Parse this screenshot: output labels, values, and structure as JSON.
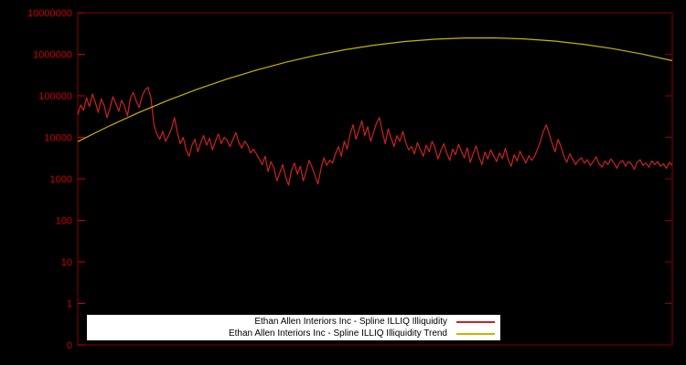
{
  "colors": {
    "background": "#000000",
    "border": "#8b0000",
    "tick_label": "#cc0000",
    "legend_background": "#ffffff",
    "legend_text": "#000000"
  },
  "chart_data": {
    "type": "line",
    "title": "",
    "xlabel": "",
    "ylabel": "",
    "x_axis": {
      "tick_labels_visible": false
    },
    "y_axis": {
      "scale": "log",
      "tick_labels": [
        "10000000",
        "1000000",
        "100000",
        "10000",
        "1000",
        "100",
        "10",
        "1",
        "0"
      ],
      "tick_values": [
        10000000,
        1000000,
        100000,
        10000,
        1000,
        100,
        10,
        1,
        0.1
      ],
      "range_log10": [
        -1,
        7
      ]
    },
    "legend": {
      "position": "bottom-center",
      "background": "#ffffff"
    },
    "series": [
      {
        "name": "Ethan Allen Interiors Inc - Spline ILLIQ Illiquidity",
        "color": "#cc2222",
        "values": [
          35000,
          60000,
          45000,
          90000,
          55000,
          110000,
          70000,
          40000,
          85000,
          60000,
          30000,
          50000,
          95000,
          65000,
          42000,
          78000,
          55000,
          33000,
          88000,
          120000,
          75000,
          52000,
          98000,
          140000,
          160000,
          90000,
          20000,
          12000,
          9000,
          14000,
          8000,
          11000,
          16000,
          30000,
          13000,
          7000,
          10000,
          5000,
          3500,
          6500,
          9000,
          4500,
          7500,
          11000,
          6500,
          9500,
          5000,
          8000,
          12000,
          7000,
          10000,
          8500,
          6000,
          9000,
          13000,
          7500,
          5500,
          8000,
          6500,
          4200,
          5200,
          4000,
          3000,
          2200,
          3500,
          1500,
          2600,
          1800,
          900,
          1400,
          2200,
          1100,
          700,
          1600,
          2400,
          1300,
          2000,
          900,
          1500,
          2800,
          1900,
          1200,
          750,
          1700,
          3200,
          2100,
          2800,
          2400,
          4000,
          6000,
          3500,
          8000,
          5200,
          12000,
          20000,
          9000,
          15000,
          25000,
          11000,
          18000,
          8000,
          13000,
          22000,
          30000,
          14000,
          7000,
          16000,
          9500,
          6000,
          11000,
          8000,
          14000,
          7500,
          5000,
          6000,
          4000,
          7500,
          5000,
          3500,
          6500,
          4500,
          8000,
          5500,
          3000,
          4800,
          7000,
          4200,
          2800,
          5200,
          3800,
          6800,
          4600,
          3200,
          5600,
          2500,
          4000,
          6200,
          3400,
          2200,
          4400,
          3000,
          5000,
          3600,
          2600,
          4200,
          3100,
          5400,
          2900,
          2000,
          3800,
          2700,
          4600,
          3300,
          2400,
          3600,
          2800,
          3500,
          5200,
          8000,
          14000,
          20000,
          12000,
          7000,
          4500,
          9000,
          6000,
          3500,
          2500,
          4000,
          3000,
          2200,
          2800,
          3200,
          2400,
          2900,
          2100,
          2600,
          3400,
          2300,
          1900,
          2700,
          2200,
          3000,
          2500,
          1800,
          2400,
          2800,
          2000,
          2600,
          2300,
          1700,
          2500,
          2900,
          2100,
          2400,
          1900,
          2700,
          2200,
          2600,
          2000,
          2300,
          1800,
          2500,
          2100
        ]
      },
      {
        "name": "Ethan Allen Interiors Inc - Spline ILLIQ Illiquidity Trend",
        "color": "#c8b400",
        "values": [
          7900,
          17900,
          38000,
          76000,
          142000,
          251000,
          415000,
          645000,
          943000,
          1295000,
          1671000,
          2027000,
          2310000,
          2473000,
          2489000,
          2353000,
          2091000,
          1746000,
          1370000,
          1010000,
          700000
        ]
      }
    ]
  }
}
